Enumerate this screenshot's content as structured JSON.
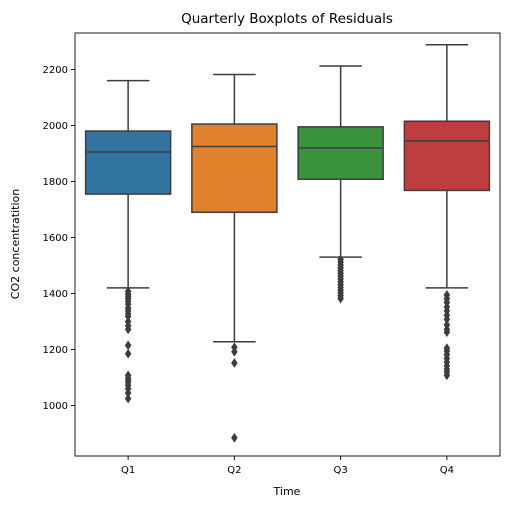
{
  "chart_data": {
    "type": "box",
    "title": "Quarterly Boxplots of Residuals",
    "xlabel": "Time",
    "ylabel": "CO2 concentratition",
    "ylim": [
      820,
      2330
    ],
    "yticks": [
      1000,
      1200,
      1400,
      1600,
      1800,
      2000,
      2200
    ],
    "grid": false,
    "categories": [
      "Q1",
      "Q2",
      "Q3",
      "Q4"
    ],
    "colors": [
      "#3274a1",
      "#e1812c",
      "#3a923a",
      "#c03d3e"
    ],
    "edge_color": "#3d3d3d",
    "boxes": [
      {
        "name": "Q1",
        "whisker_low": 1420,
        "q1": 1755,
        "median": 1905,
        "q3": 1980,
        "whisker_high": 2160,
        "outliers": [
          1408,
          1398,
          1390,
          1382,
          1372,
          1362,
          1348,
          1338,
          1328,
          1318,
          1300,
          1285,
          1272,
          1215,
          1185,
          1108,
          1098,
          1090,
          1082,
          1072,
          1060,
          1045,
          1025
        ]
      },
      {
        "name": "Q2",
        "whisker_low": 1228,
        "q1": 1690,
        "median": 1925,
        "q3": 2005,
        "whisker_high": 2182,
        "outliers": [
          1208,
          1192,
          1152,
          885
        ]
      },
      {
        "name": "Q3",
        "whisker_low": 1530,
        "q1": 1808,
        "median": 1920,
        "q3": 1995,
        "whisker_high": 2212,
        "outliers": [
          1522,
          1512,
          1502,
          1492,
          1482,
          1472,
          1462,
          1452,
          1442,
          1432,
          1422,
          1412,
          1402,
          1392,
          1382
        ]
      },
      {
        "name": "Q4",
        "whisker_low": 1420,
        "q1": 1768,
        "median": 1945,
        "q3": 2015,
        "whisker_high": 2288,
        "outliers": [
          1395,
          1382,
          1368,
          1352,
          1338,
          1322,
          1308,
          1288,
          1272,
          1262,
          1205,
          1195,
          1182,
          1168,
          1155,
          1142,
          1130,
          1120,
          1108
        ]
      }
    ]
  }
}
